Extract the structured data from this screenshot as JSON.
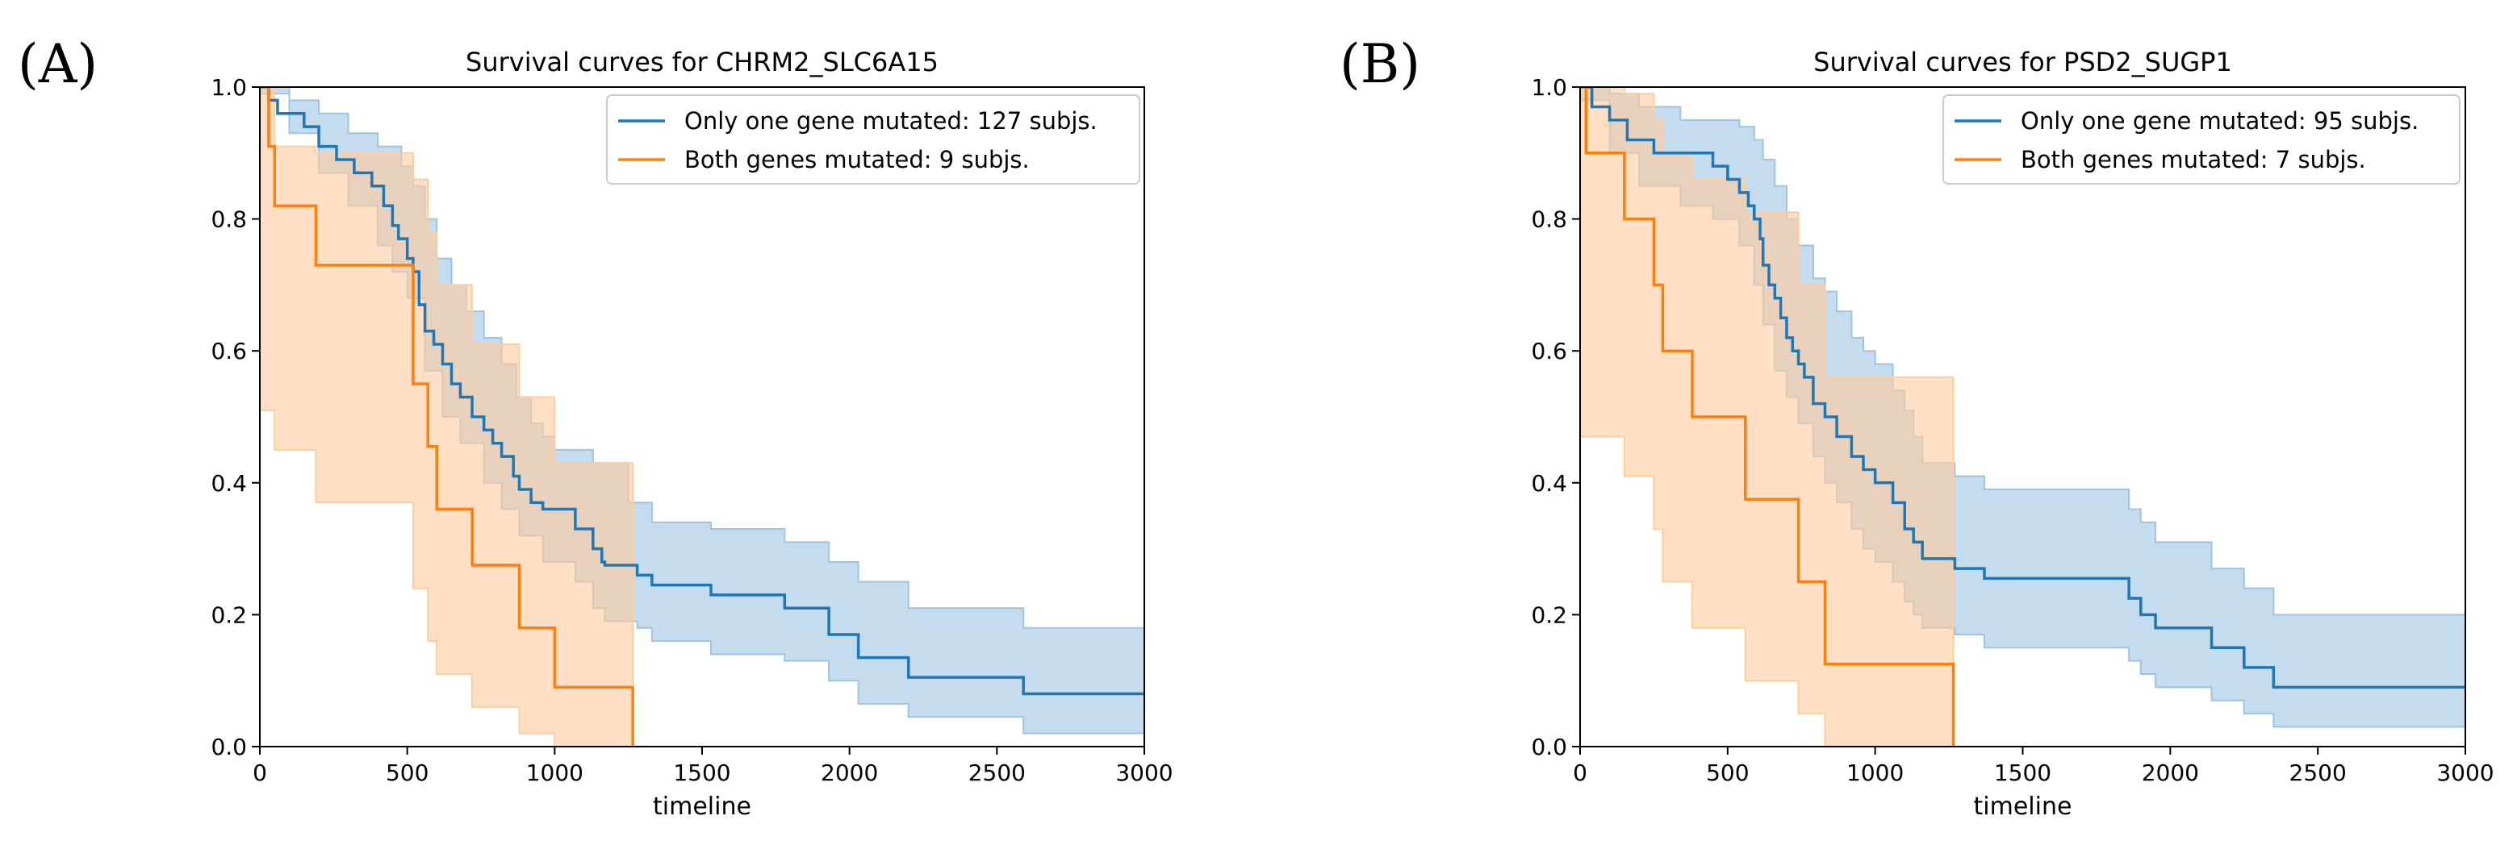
{
  "chart_data": [
    {
      "panel_label": "(A)",
      "type": "line",
      "subtype": "kaplan-meier step survival curves with confidence bands",
      "title": "Survival curves for CHRM2_SLC6A15",
      "xlabel": "timeline",
      "ylabel": "",
      "xlim": [
        0,
        3000
      ],
      "ylim": [
        0.0,
        1.0
      ],
      "xticks": [
        "0",
        "500",
        "1000",
        "1500",
        "2000",
        "2500",
        "3000"
      ],
      "yticks": [
        "0.0",
        "0.2",
        "0.4",
        "0.6",
        "0.8",
        "1.0"
      ],
      "legend_position": "top-right",
      "series": [
        {
          "name": "Only one gene mutated: 127 subjs.",
          "color": "#1f77b4",
          "band_color": "#9ec4e2",
          "steps": [
            [
              0,
              1.0
            ],
            [
              30,
              0.98
            ],
            [
              60,
              0.96
            ],
            [
              150,
              0.94
            ],
            [
              200,
              0.91
            ],
            [
              260,
              0.89
            ],
            [
              320,
              0.87
            ],
            [
              380,
              0.85
            ],
            [
              420,
              0.82
            ],
            [
              450,
              0.79
            ],
            [
              470,
              0.77
            ],
            [
              500,
              0.74
            ],
            [
              520,
              0.72
            ],
            [
              540,
              0.67
            ],
            [
              560,
              0.63
            ],
            [
              590,
              0.61
            ],
            [
              620,
              0.58
            ],
            [
              650,
              0.55
            ],
            [
              680,
              0.53
            ],
            [
              720,
              0.5
            ],
            [
              760,
              0.48
            ],
            [
              790,
              0.46
            ],
            [
              820,
              0.44
            ],
            [
              860,
              0.41
            ],
            [
              880,
              0.39
            ],
            [
              920,
              0.37
            ],
            [
              960,
              0.36
            ],
            [
              1070,
              0.33
            ],
            [
              1130,
              0.3
            ],
            [
              1160,
              0.28
            ],
            [
              1170,
              0.275
            ],
            [
              1280,
              0.26
            ],
            [
              1330,
              0.245
            ],
            [
              1530,
              0.23
            ],
            [
              1780,
              0.21
            ],
            [
              1930,
              0.17
            ],
            [
              2030,
              0.135
            ],
            [
              2200,
              0.105
            ],
            [
              2590,
              0.08
            ],
            [
              3000,
              0.08
            ]
          ],
          "band_upper": [
            [
              0,
              1.0
            ],
            [
              100,
              0.98
            ],
            [
              200,
              0.96
            ],
            [
              300,
              0.93
            ],
            [
              400,
              0.91
            ],
            [
              480,
              0.88
            ],
            [
              520,
              0.85
            ],
            [
              560,
              0.8
            ],
            [
              600,
              0.74
            ],
            [
              650,
              0.7
            ],
            [
              700,
              0.66
            ],
            [
              760,
              0.62
            ],
            [
              820,
              0.58
            ],
            [
              870,
              0.53
            ],
            [
              920,
              0.49
            ],
            [
              960,
              0.47
            ],
            [
              1000,
              0.45
            ],
            [
              1070,
              0.45
            ],
            [
              1130,
              0.43
            ],
            [
              1250,
              0.37
            ],
            [
              1330,
              0.34
            ],
            [
              1530,
              0.33
            ],
            [
              1780,
              0.31
            ],
            [
              1930,
              0.28
            ],
            [
              2030,
              0.25
            ],
            [
              2200,
              0.21
            ],
            [
              2590,
              0.18
            ],
            [
              3000,
              0.18
            ]
          ],
          "band_lower": [
            [
              0,
              0.99
            ],
            [
              100,
              0.93
            ],
            [
              200,
              0.87
            ],
            [
              300,
              0.82
            ],
            [
              400,
              0.76
            ],
            [
              450,
              0.72
            ],
            [
              500,
              0.68
            ],
            [
              560,
              0.57
            ],
            [
              620,
              0.5
            ],
            [
              680,
              0.46
            ],
            [
              760,
              0.4
            ],
            [
              820,
              0.36
            ],
            [
              880,
              0.32
            ],
            [
              960,
              0.28
            ],
            [
              1070,
              0.25
            ],
            [
              1130,
              0.21
            ],
            [
              1170,
              0.19
            ],
            [
              1280,
              0.18
            ],
            [
              1330,
              0.16
            ],
            [
              1530,
              0.14
            ],
            [
              1780,
              0.13
            ],
            [
              1930,
              0.1
            ],
            [
              2030,
              0.065
            ],
            [
              2200,
              0.045
            ],
            [
              2590,
              0.02
            ],
            [
              3000,
              0.02
            ]
          ]
        },
        {
          "name": "Both genes mutated: 9 subjs.",
          "color": "#ff7f0e",
          "band_color": "#ffcc9e",
          "steps": [
            [
              0,
              1.0
            ],
            [
              30,
              0.91
            ],
            [
              50,
              0.82
            ],
            [
              190,
              0.73
            ],
            [
              520,
              0.55
            ],
            [
              570,
              0.455
            ],
            [
              600,
              0.36
            ],
            [
              720,
              0.275
            ],
            [
              880,
              0.18
            ],
            [
              1000,
              0.09
            ],
            [
              1265,
              0.0
            ]
          ],
          "band_upper": [
            [
              0,
              1.0
            ],
            [
              30,
              1.0
            ],
            [
              50,
              0.91
            ],
            [
              190,
              0.9
            ],
            [
              520,
              0.86
            ],
            [
              570,
              0.78
            ],
            [
              600,
              0.7
            ],
            [
              720,
              0.61
            ],
            [
              880,
              0.53
            ],
            [
              1000,
              0.43
            ],
            [
              1265,
              0.33
            ]
          ],
          "band_lower": [
            [
              0,
              0.51
            ],
            [
              30,
              0.51
            ],
            [
              50,
              0.45
            ],
            [
              190,
              0.37
            ],
            [
              520,
              0.24
            ],
            [
              570,
              0.16
            ],
            [
              600,
              0.11
            ],
            [
              720,
              0.06
            ],
            [
              880,
              0.02
            ],
            [
              1000,
              0.0
            ],
            [
              1265,
              0.0
            ]
          ]
        }
      ]
    },
    {
      "panel_label": "(B)",
      "type": "line",
      "subtype": "kaplan-meier step survival curves with confidence bands",
      "title": "Survival curves for PSD2_SUGP1",
      "xlabel": "timeline",
      "ylabel": "",
      "xlim": [
        0,
        3000
      ],
      "ylim": [
        0.0,
        1.0
      ],
      "xticks": [
        "0",
        "500",
        "1000",
        "1500",
        "2000",
        "2500",
        "3000"
      ],
      "yticks": [
        "0.0",
        "0.2",
        "0.4",
        "0.6",
        "0.8",
        "1.0"
      ],
      "legend_position": "top-right",
      "series": [
        {
          "name": "Only one gene mutated: 95 subjs.",
          "color": "#1f77b4",
          "band_color": "#9ec4e2",
          "steps": [
            [
              0,
              1.0
            ],
            [
              40,
              0.97
            ],
            [
              100,
              0.95
            ],
            [
              160,
              0.92
            ],
            [
              250,
              0.9
            ],
            [
              340,
              0.9
            ],
            [
              450,
              0.88
            ],
            [
              500,
              0.86
            ],
            [
              540,
              0.84
            ],
            [
              570,
              0.82
            ],
            [
              590,
              0.8
            ],
            [
              610,
              0.77
            ],
            [
              620,
              0.73
            ],
            [
              640,
              0.7
            ],
            [
              660,
              0.68
            ],
            [
              680,
              0.65
            ],
            [
              700,
              0.62
            ],
            [
              720,
              0.6
            ],
            [
              740,
              0.58
            ],
            [
              760,
              0.56
            ],
            [
              790,
              0.52
            ],
            [
              830,
              0.5
            ],
            [
              870,
              0.47
            ],
            [
              920,
              0.44
            ],
            [
              960,
              0.42
            ],
            [
              1000,
              0.4
            ],
            [
              1060,
              0.37
            ],
            [
              1100,
              0.33
            ],
            [
              1130,
              0.31
            ],
            [
              1160,
              0.285
            ],
            [
              1270,
              0.27
            ],
            [
              1370,
              0.255
            ],
            [
              1860,
              0.225
            ],
            [
              1900,
              0.2
            ],
            [
              1950,
              0.18
            ],
            [
              2140,
              0.15
            ],
            [
              2250,
              0.12
            ],
            [
              2350,
              0.09
            ],
            [
              3000,
              0.09
            ]
          ],
          "band_upper": [
            [
              0,
              1.0
            ],
            [
              100,
              0.99
            ],
            [
              200,
              0.97
            ],
            [
              340,
              0.95
            ],
            [
              450,
              0.95
            ],
            [
              540,
              0.94
            ],
            [
              590,
              0.92
            ],
            [
              620,
              0.89
            ],
            [
              660,
              0.85
            ],
            [
              700,
              0.8
            ],
            [
              740,
              0.76
            ],
            [
              790,
              0.71
            ],
            [
              830,
              0.69
            ],
            [
              870,
              0.66
            ],
            [
              920,
              0.62
            ],
            [
              960,
              0.6
            ],
            [
              1000,
              0.58
            ],
            [
              1060,
              0.54
            ],
            [
              1100,
              0.51
            ],
            [
              1130,
              0.47
            ],
            [
              1160,
              0.43
            ],
            [
              1270,
              0.41
            ],
            [
              1370,
              0.39
            ],
            [
              1860,
              0.36
            ],
            [
              1900,
              0.34
            ],
            [
              1950,
              0.31
            ],
            [
              2140,
              0.27
            ],
            [
              2250,
              0.24
            ],
            [
              2350,
              0.2
            ],
            [
              3000,
              0.2
            ]
          ],
          "band_lower": [
            [
              0,
              0.98
            ],
            [
              100,
              0.9
            ],
            [
              200,
              0.85
            ],
            [
              340,
              0.82
            ],
            [
              450,
              0.8
            ],
            [
              540,
              0.76
            ],
            [
              590,
              0.7
            ],
            [
              620,
              0.64
            ],
            [
              660,
              0.57
            ],
            [
              700,
              0.53
            ],
            [
              740,
              0.49
            ],
            [
              790,
              0.44
            ],
            [
              830,
              0.4
            ],
            [
              870,
              0.37
            ],
            [
              920,
              0.33
            ],
            [
              960,
              0.3
            ],
            [
              1000,
              0.28
            ],
            [
              1060,
              0.25
            ],
            [
              1100,
              0.22
            ],
            [
              1130,
              0.2
            ],
            [
              1160,
              0.18
            ],
            [
              1270,
              0.17
            ],
            [
              1370,
              0.15
            ],
            [
              1860,
              0.13
            ],
            [
              1900,
              0.11
            ],
            [
              1950,
              0.09
            ],
            [
              2140,
              0.07
            ],
            [
              2250,
              0.05
            ],
            [
              2350,
              0.03
            ],
            [
              3000,
              0.03
            ]
          ]
        },
        {
          "name": "Both genes mutated: 7 subjs.",
          "color": "#ff7f0e",
          "band_color": "#ffcc9e",
          "steps": [
            [
              0,
              1.0
            ],
            [
              20,
              0.9
            ],
            [
              150,
              0.8
            ],
            [
              250,
              0.7
            ],
            [
              280,
              0.6
            ],
            [
              380,
              0.5
            ],
            [
              560,
              0.375
            ],
            [
              740,
              0.25
            ],
            [
              830,
              0.125
            ],
            [
              1265,
              0.0
            ]
          ],
          "band_upper": [
            [
              0,
              1.0
            ],
            [
              20,
              1.0
            ],
            [
              150,
              0.99
            ],
            [
              250,
              0.95
            ],
            [
              280,
              0.9
            ],
            [
              380,
              0.86
            ],
            [
              560,
              0.81
            ],
            [
              740,
              0.7
            ],
            [
              830,
              0.56
            ],
            [
              1265,
              0.42
            ]
          ],
          "band_lower": [
            [
              0,
              0.47
            ],
            [
              20,
              0.47
            ],
            [
              150,
              0.41
            ],
            [
              250,
              0.33
            ],
            [
              280,
              0.25
            ],
            [
              380,
              0.18
            ],
            [
              560,
              0.1
            ],
            [
              740,
              0.05
            ],
            [
              830,
              0.0
            ],
            [
              1265,
              0.0
            ]
          ]
        }
      ]
    }
  ]
}
